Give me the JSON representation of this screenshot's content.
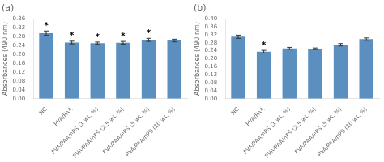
{
  "chart_data": [
    {
      "type": "bar",
      "title": "(a)",
      "ylabel": "Absorbances (490 nm)",
      "categories": [
        "NC",
        "PVA/PAA",
        "PVA/PAA/nPS (1 wt. %)",
        "PVA/PAA/nPS (2.5 wt. %)",
        "PVA/PAA/nPS (5 wt. %)",
        "PVA/PAA/nPS (10 wt. %)"
      ],
      "values": [
        0.295,
        0.253,
        0.25,
        0.252,
        0.265,
        0.262
      ],
      "errors": [
        0.01,
        0.006,
        0.005,
        0.006,
        0.007,
        0.006
      ],
      "annotations": [
        "*",
        "*",
        "*",
        "*",
        "*",
        null
      ],
      "color": "#5b8fc0",
      "ylim": [
        0.0,
        0.36
      ],
      "yticks": [
        {
          "value": 0.0,
          "label": "0.00"
        },
        0.04,
        0.08,
        0.12,
        0.16,
        {
          "value": 0.2,
          "label": "0.20"
        },
        0.24,
        0.28,
        0.32,
        0.36
      ],
      "grid": false
    },
    {
      "type": "bar",
      "title": "(b)",
      "ylabel": "Absorbances (490 nm)",
      "categories": [
        "NC",
        "PVA/PAA",
        "PVA/PAA/nPS (1 wt. %)",
        "PVA/PAA/nPS (2.5 wt. %)",
        "PVA/PAA/nPS (5 wt. %)",
        "PVA/PAA/nPS (10 wt. %)"
      ],
      "values": [
        0.31,
        0.235,
        0.252,
        0.25,
        0.27,
        0.298
      ],
      "errors": [
        0.008,
        0.007,
        0.005,
        0.004,
        0.006,
        0.006
      ],
      "annotations": [
        null,
        "*",
        null,
        null,
        null,
        null
      ],
      "color": "#5b8fc0",
      "ylim": [
        0.0,
        0.4
      ],
      "yticks": [
        {
          "value": 0.0,
          "label": "0.00"
        },
        0.04,
        0.08,
        0.12,
        0.16,
        {
          "value": 0.2,
          "label": "0.20"
        },
        0.24,
        0.28,
        0.32,
        0.36,
        {
          "value": 0.4,
          "label": "0.40"
        }
      ],
      "grid": false
    }
  ]
}
